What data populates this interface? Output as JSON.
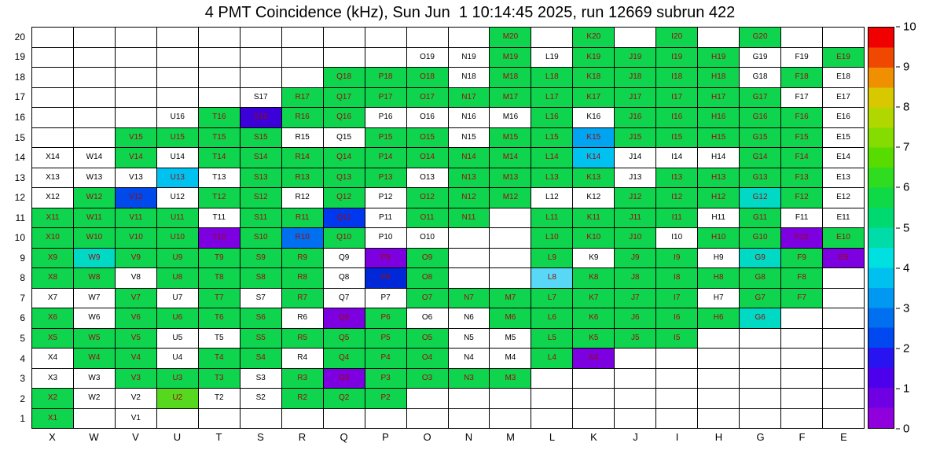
{
  "chart_data": {
    "type": "heatmap",
    "title": "4 PMT Coincidence (kHz), Sun Jun  1 10:14:45 2025, run 12669 subrun 422",
    "xlabel": "",
    "ylabel": "",
    "x_categories": [
      "X",
      "W",
      "V",
      "U",
      "T",
      "S",
      "R",
      "Q",
      "P",
      "O",
      "N",
      "M",
      "L",
      "K",
      "J",
      "I",
      "H",
      "G",
      "F",
      "E"
    ],
    "y_categories": [
      20,
      19,
      18,
      17,
      16,
      15,
      14,
      13,
      12,
      11,
      10,
      9,
      8,
      7,
      6,
      5,
      4,
      3,
      2,
      1
    ],
    "colorbar": {
      "min": 0,
      "max": 10,
      "ticks": [
        0,
        1,
        2,
        3,
        4,
        5,
        6,
        7,
        8,
        9,
        10
      ],
      "bands": [
        "#9000dc",
        "#7000e4",
        "#4c00ec",
        "#2814f0",
        "#0048f0",
        "#0070f0",
        "#0098f0",
        "#00c0f0",
        "#00e0e0",
        "#00dca8",
        "#00d870",
        "#10d948",
        "#30dc20",
        "#58dc00",
        "#84dc00",
        "#b0d800",
        "#d8c800",
        "#f09000",
        "#f04800",
        "#f00000"
      ]
    },
    "palette": {
      "g": {
        "hex": "#0ed44e",
        "value": 5
      },
      "gy": {
        "hex": "#55d81e",
        "value": 6
      },
      "tc": {
        "hex": "#00d9c4",
        "value": 4
      },
      "lc": {
        "hex": "#58d8f6",
        "value": 3.6
      },
      "cb": {
        "hex": "#00c2f0",
        "value": 3.3
      },
      "az": {
        "hex": "#00a4f0",
        "value": 3
      },
      "az2": {
        "hex": "#0070f0",
        "value": 2.6
      },
      "bl": {
        "hex": "#0049ea",
        "value": 2.2
      },
      "bl2": {
        "hex": "#0038f0",
        "value": 2
      },
      "db": {
        "hex": "#0028d8",
        "value": 1.6
      },
      "ib": {
        "hex": "#3c00d8",
        "value": 1
      },
      "pv": {
        "hex": "#7c00e0",
        "value": 0.5
      },
      "w": {
        "hex": "#ffffff",
        "value": null
      }
    },
    "cells": {
      "M20": "g",
      "K20": "g",
      "I20": "g",
      "G20": "g",
      "O19": "w",
      "N19": "w",
      "M19": "g",
      "L19": "w",
      "K19": "g",
      "J19": "g",
      "I19": "g",
      "H19": "g",
      "G19": "w",
      "F19": "w",
      "E19": "g",
      "Q18": "g",
      "P18": "g",
      "O18": "g",
      "N18": "w",
      "M18": "g",
      "L18": "g",
      "K18": "g",
      "J18": "g",
      "I18": "g",
      "H18": "g",
      "G18": "w",
      "F18": "g",
      "E18": "w",
      "S17": "w",
      "R17": "g",
      "Q17": "g",
      "P17": "g",
      "O17": "g",
      "N17": "g",
      "M17": "g",
      "L17": "g",
      "K17": "g",
      "J17": "g",
      "I17": "g",
      "H17": "g",
      "G17": "g",
      "F17": "w",
      "E17": "w",
      "U16": "w",
      "T16": "g",
      "S16": "ib",
      "R16": "g",
      "Q16": "g",
      "P16": "w",
      "O16": "w",
      "N16": "w",
      "M16": "w",
      "L16": "g",
      "K16": "w",
      "J16": "g",
      "I16": "g",
      "H16": "g",
      "G16": "g",
      "F16": "g",
      "E16": "w",
      "V15": "g",
      "U15": "g",
      "T15": "g",
      "S15": "g",
      "R15": "w",
      "Q15": "w",
      "P15": "g",
      "O15": "g",
      "N15": "w",
      "M15": "g",
      "L15": "g",
      "K15": "az",
      "J15": "g",
      "I15": "g",
      "H15": "g",
      "G15": "g",
      "F15": "g",
      "E15": "w",
      "X14": "w",
      "W14": "w",
      "V14": "g",
      "U14": "w",
      "T14": "g",
      "S14": "g",
      "R14": "g",
      "Q14": "g",
      "P14": "g",
      "O14": "g",
      "N14": "g",
      "M14": "g",
      "L14": "g",
      "K14": "cb",
      "J14": "w",
      "I14": "w",
      "H14": "w",
      "G14": "g",
      "F14": "g",
      "E14": "w",
      "X13": "w",
      "W13": "w",
      "V13": "w",
      "U13": "cb",
      "T13": "w",
      "S13": "g",
      "R13": "g",
      "Q13": "g",
      "P13": "g",
      "O13": "w",
      "N13": "g",
      "M13": "g",
      "L13": "g",
      "K13": "g",
      "J13": "w",
      "I13": "g",
      "H13": "g",
      "G13": "g",
      "F13": "g",
      "E13": "w",
      "X12": "w",
      "W12": "g",
      "V12": "bl",
      "U12": "w",
      "T12": "g",
      "S12": "g",
      "R12": "w",
      "Q12": "g",
      "P12": "w",
      "O12": "g",
      "N12": "g",
      "M12": "g",
      "L12": "w",
      "K12": "w",
      "J12": "g",
      "I12": "g",
      "H12": "g",
      "G12": "tc",
      "F12": "g",
      "E12": "w",
      "X11": "g",
      "W11": "g",
      "V11": "g",
      "U11": "g",
      "T11": "w",
      "S11": "g",
      "R11": "g",
      "Q11": "bl2",
      "P11": "w",
      "O11": "g",
      "N11": "g",
      "L11": "g",
      "K11": "g",
      "J11": "g",
      "I11": "g",
      "H11": "w",
      "G11": "g",
      "F11": "w",
      "E11": "w",
      "X10": "g",
      "W10": "g",
      "V10": "g",
      "U10": "g",
      "T10": "pv",
      "S10": "g",
      "R10": "az2",
      "Q10": "g",
      "P10": "w",
      "O10": "w",
      "L10": "g",
      "K10": "g",
      "J10": "g",
      "I10": "w",
      "H10": "g",
      "G10": "g",
      "F10": "pv",
      "E10": "g",
      "X9": "g",
      "W9": "tc",
      "V9": "g",
      "U9": "g",
      "T9": "g",
      "S9": "g",
      "R9": "g",
      "Q9": "w",
      "P9": "pv",
      "O9": "g",
      "L9": "g",
      "K9": "w",
      "J9": "g",
      "I9": "g",
      "H9": "w",
      "G9": "tc",
      "F9": "g",
      "E9": "pv",
      "X8": "g",
      "W8": "g",
      "V8": "w",
      "U8": "g",
      "T8": "g",
      "S8": "g",
      "R8": "g",
      "Q8": "w",
      "P8": "db",
      "O8": "g",
      "L8": "lc",
      "K8": "g",
      "J8": "g",
      "I8": "g",
      "H8": "g",
      "G8": "g",
      "F8": "g",
      "X7": "w",
      "W7": "w",
      "V7": "g",
      "U7": "w",
      "T7": "g",
      "S7": "w",
      "R7": "g",
      "Q7": "w",
      "P7": "w",
      "O7": "g",
      "N7": "g",
      "M7": "g",
      "L7": "g",
      "K7": "g",
      "J7": "g",
      "I7": "g",
      "H7": "w",
      "G7": "g",
      "F7": "g",
      "X6": "g",
      "W6": "w",
      "V6": "g",
      "U6": "g",
      "T6": "g",
      "S6": "g",
      "R6": "w",
      "Q6": "pv",
      "P6": "g",
      "O6": "w",
      "N6": "w",
      "M6": "g",
      "L6": "g",
      "K6": "g",
      "J6": "g",
      "I6": "g",
      "H6": "g",
      "G6": "tc",
      "X5": "g",
      "W5": "g",
      "V5": "g",
      "U5": "w",
      "T5": "w",
      "S5": "g",
      "R5": "g",
      "Q5": "g",
      "P5": "g",
      "O5": "g",
      "N5": "w",
      "M5": "w",
      "L5": "g",
      "K5": "g",
      "J5": "g",
      "I5": "g",
      "X4": "w",
      "W4": "g",
      "V4": "g",
      "U4": "w",
      "T4": "g",
      "S4": "g",
      "R4": "w",
      "Q4": "g",
      "P4": "g",
      "O4": "g",
      "N4": "w",
      "M4": "w",
      "L4": "g",
      "K4": "pv",
      "X3": "w",
      "W3": "w",
      "V3": "g",
      "U3": "g",
      "T3": "g",
      "S3": "w",
      "R3": "g",
      "Q3": "pv",
      "P3": "g",
      "O3": "g",
      "N3": "g",
      "M3": "g",
      "X2": "g",
      "W2": "w",
      "V2": "w",
      "U2": "gy",
      "T2": "w",
      "S2": "w",
      "R2": "g",
      "Q2": "g",
      "P2": "g",
      "X1": "g",
      "V1": "w"
    }
  }
}
